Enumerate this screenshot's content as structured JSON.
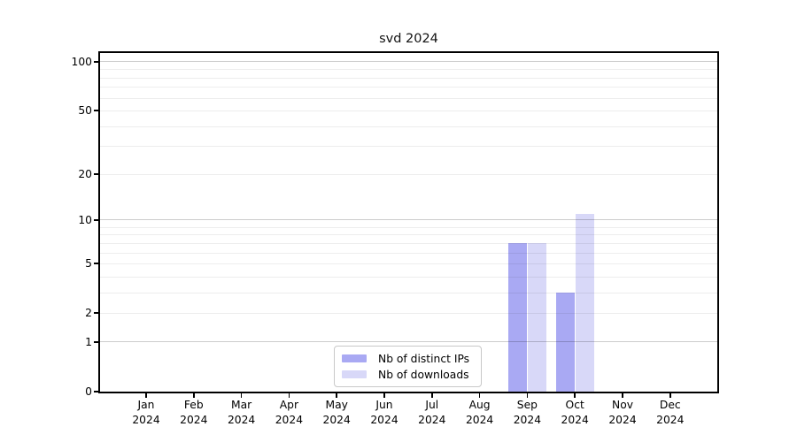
{
  "title": "svd 2024",
  "chart_data": {
    "type": "bar",
    "title": "svd 2024",
    "categories": [
      "Jan",
      "Feb",
      "Mar",
      "Apr",
      "May",
      "Jun",
      "Jul",
      "Aug",
      "Sep",
      "Oct",
      "Nov",
      "Dec"
    ],
    "year_label": "2024",
    "series": [
      {
        "name": "Nb of distinct IPs",
        "color": "#a9a9f3",
        "values": [
          0,
          0,
          0,
          0,
          0,
          0,
          0,
          0,
          7,
          3,
          0,
          0
        ]
      },
      {
        "name": "Nb of downloads",
        "color": "#d8d8f8",
        "values": [
          0,
          0,
          0,
          0,
          0,
          0,
          0,
          0,
          7,
          11,
          0,
          0
        ]
      }
    ],
    "xlabel": "",
    "ylabel": "",
    "y_scale": "log1p",
    "y_max": 113,
    "y_ticks": [
      0,
      1,
      2,
      5,
      10,
      20,
      50,
      100
    ],
    "gridlines_major": [
      1,
      10,
      100
    ],
    "gridlines_minor": [
      2,
      3,
      4,
      5,
      6,
      7,
      8,
      9,
      20,
      30,
      40,
      50,
      60,
      70,
      80,
      90
    ],
    "grid": true,
    "legend_position": "bottom-center"
  },
  "colors": {
    "background": "#ffffff",
    "spine": "#000000",
    "bar_distinct_ips": "#a9a9f3",
    "bar_downloads": "#d8d8f8",
    "legend_border": "#c8c8c8",
    "grid_major": "rgba(0,0,0,0.20)",
    "grid_minor": "rgba(0,0,0,0.07)"
  }
}
